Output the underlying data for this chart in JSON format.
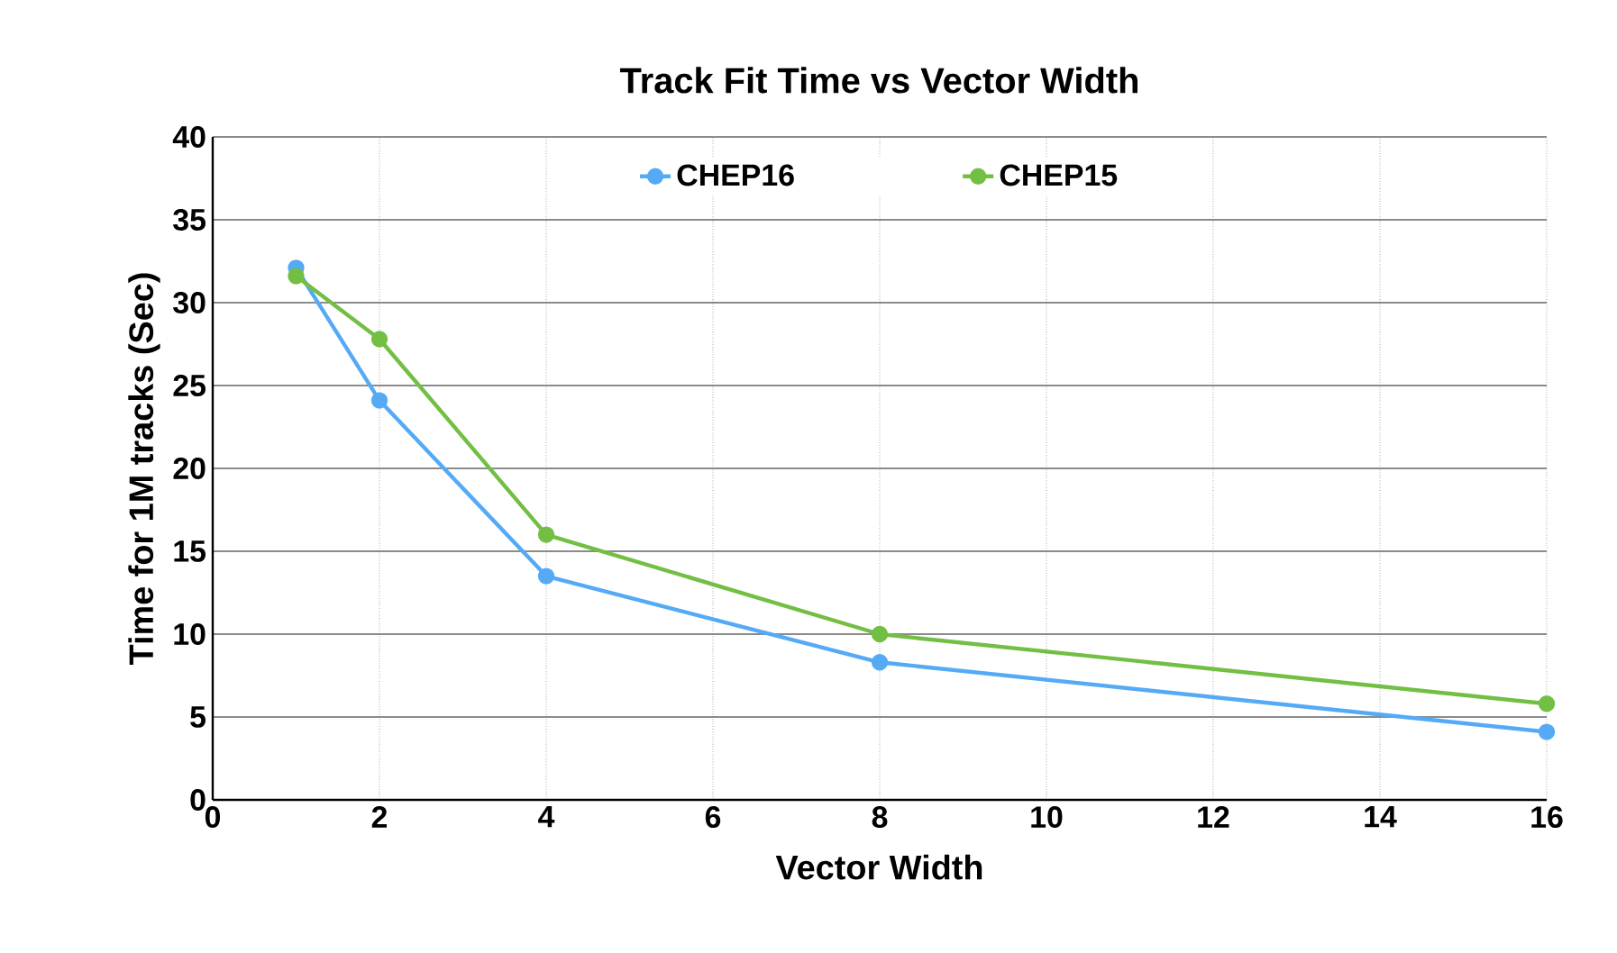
{
  "chart_data": {
    "type": "line",
    "title": "Track Fit Time vs Vector Width",
    "xlabel": "Vector Width",
    "ylabel": "Time for 1M tracks (Sec)",
    "x": [
      1,
      2,
      4,
      8,
      16
    ],
    "series": [
      {
        "name": "CHEP16",
        "color": "#55aaf5",
        "values": [
          32.1,
          24.1,
          13.5,
          8.3,
          4.1
        ]
      },
      {
        "name": "CHEP15",
        "color": "#72bf44",
        "values": [
          31.6,
          27.8,
          16.0,
          10.0,
          5.8
        ]
      }
    ],
    "xlim": [
      0,
      16
    ],
    "xticks": [
      0,
      2,
      4,
      6,
      8,
      10,
      12,
      14,
      16
    ],
    "ylim": [
      0,
      40
    ],
    "yticks": [
      0,
      5,
      10,
      15,
      20,
      25,
      30,
      35,
      40
    ],
    "grid": true,
    "legend": "top",
    "marker": "circle",
    "line_style": "solid"
  }
}
